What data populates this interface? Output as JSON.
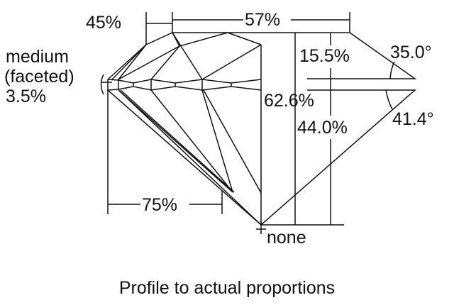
{
  "diagram": {
    "labels": {
      "crown_angle_width": "45%",
      "table": "57%",
      "girdle_line1": "medium",
      "girdle_line2": "(faceted)",
      "girdle_thickness": "3.5%",
      "crown_height": "15.5%",
      "crown_angle": "35.0°",
      "total_depth": "62.6%",
      "pavilion_depth": "44.0%",
      "pavilion_angle": "41.4°",
      "lower_half": "75%",
      "culet": "none"
    },
    "caption": "Profile to actual proportions",
    "line_color": "#111111"
  }
}
